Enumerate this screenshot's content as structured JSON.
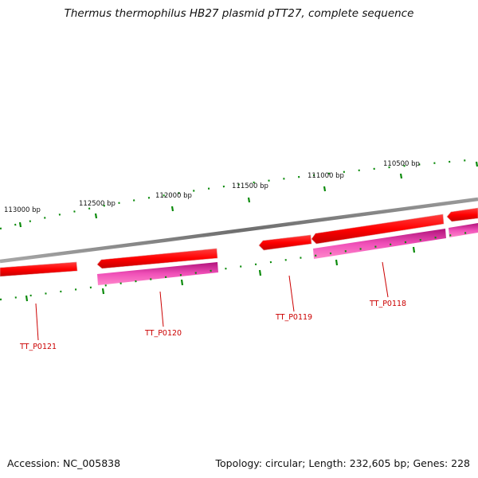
{
  "title": "Thermus thermophilus HB27 plasmid pTT27, complete sequence",
  "footer": {
    "accession": "Accession: NC_005838",
    "summary": "Topology: circular; Length: 232,605 bp; Genes: 228"
  },
  "position_labels": [
    "113000 bp",
    "112500 bp",
    "112000 bp",
    "111500 bp",
    "111000 bp",
    "110500 bp"
  ],
  "gene_labels": [
    "TT_P0121",
    "TT_P0120",
    "TT_P0119",
    "TT_P0118"
  ],
  "colors": {
    "backbone": "#808080",
    "cds_red": "#ff0000",
    "gene_magenta": "#e0199a",
    "tick_green": "#0a8a0a",
    "label_red": "#cc0000"
  }
}
